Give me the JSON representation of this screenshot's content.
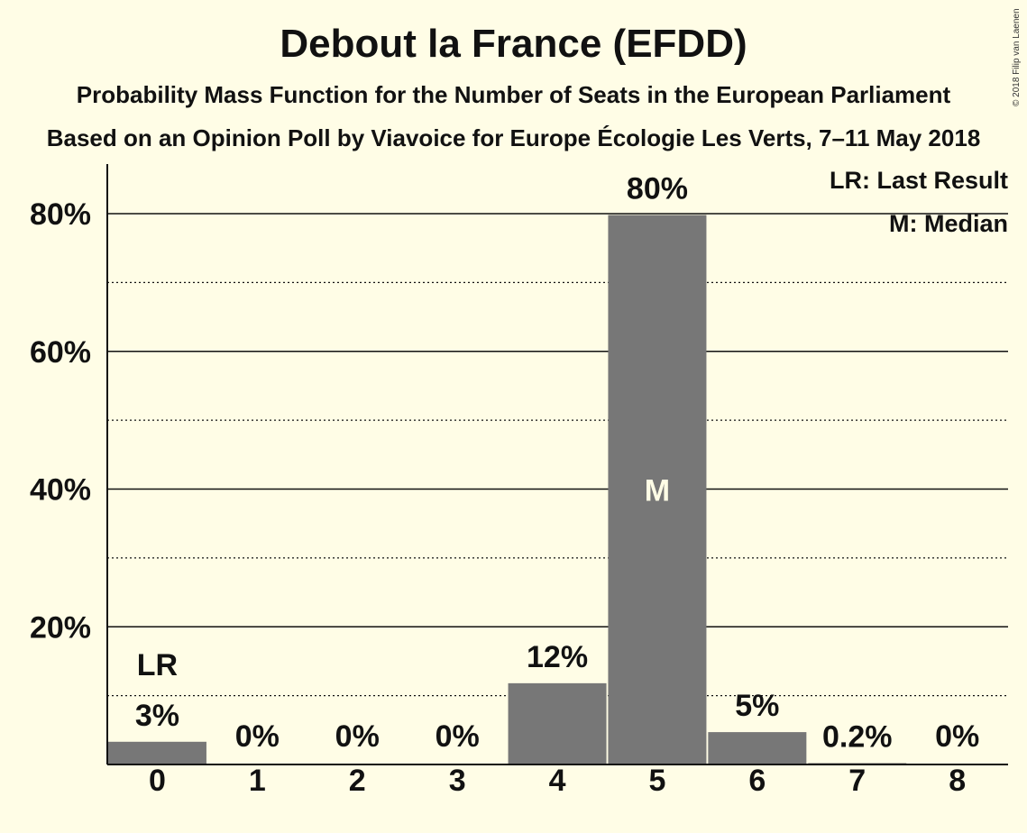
{
  "chart_data": {
    "type": "bar",
    "title": "Debout la France (EFDD)",
    "subtitle": "Probability Mass Function for the Number of Seats in the European Parliament",
    "subtitle2": "Based on an Opinion Poll by Viavoice for Europe Écologie Les Verts, 7–11 May 2018",
    "copyright": "© 2018 Filip van Laenen",
    "categories": [
      "0",
      "1",
      "2",
      "3",
      "4",
      "5",
      "6",
      "7",
      "8"
    ],
    "values": [
      3.3,
      0,
      0,
      0,
      11.8,
      79.8,
      4.7,
      0.2,
      0
    ],
    "data_labels": [
      "3%",
      "0%",
      "0%",
      "0%",
      "12%",
      "80%",
      "5%",
      "0.2%",
      "0%"
    ],
    "ylim": [
      0,
      87
    ],
    "yticks_major": [
      {
        "value": 20,
        "label": "20%"
      },
      {
        "value": 40,
        "label": "40%"
      },
      {
        "value": 60,
        "label": "60%"
      },
      {
        "value": 80,
        "label": "80%"
      }
    ],
    "yticks_minor": [
      10,
      30,
      50,
      70
    ],
    "last_result_index": 0,
    "last_result_marker": "LR",
    "median_index": 5,
    "median_marker": "M",
    "legend": [
      "LR: Last Result",
      "M: Median"
    ],
    "legend_position": "top-right",
    "bar_color": "#777777",
    "background_color": "#fffde6",
    "grid": true
  }
}
